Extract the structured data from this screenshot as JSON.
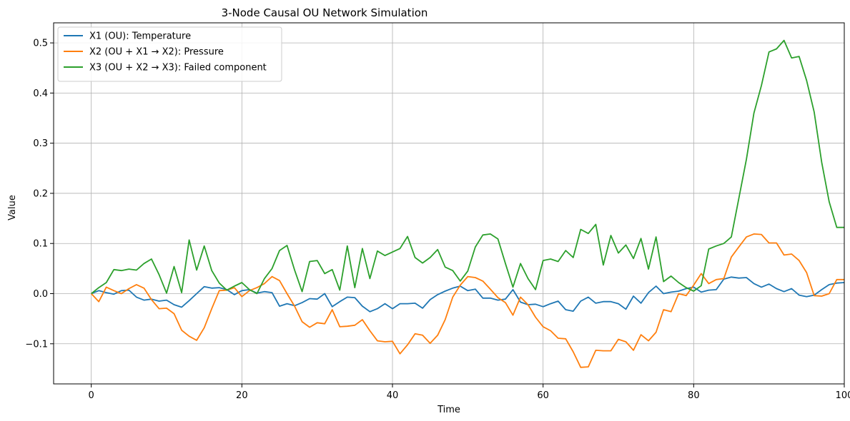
{
  "chart_data": {
    "type": "line",
    "title": "3-Node Causal OU Network Simulation",
    "xlabel": "Time",
    "ylabel": "Value",
    "xlim": [
      -5,
      100
    ],
    "ylim": [
      -0.18,
      0.54
    ],
    "xticks": [
      0,
      20,
      40,
      60,
      80,
      100
    ],
    "yticks": [
      -0.1,
      0.0,
      0.1,
      0.2,
      0.3,
      0.4,
      0.5
    ],
    "ytick_labels": [
      "−0.1",
      "0.0",
      "0.1",
      "0.2",
      "0.3",
      "0.4",
      "0.5"
    ],
    "grid": true,
    "legend_position": "upper-left",
    "x": [
      0,
      1,
      2,
      3,
      4,
      5,
      6,
      7,
      8,
      9,
      10,
      11,
      12,
      13,
      14,
      15,
      16,
      17,
      18,
      19,
      20,
      21,
      22,
      23,
      24,
      25,
      26,
      27,
      28,
      29,
      30,
      31,
      32,
      33,
      34,
      35,
      36,
      37,
      38,
      39,
      40,
      41,
      42,
      43,
      44,
      45,
      46,
      47,
      48,
      49,
      50,
      51,
      52,
      53,
      54,
      55,
      56,
      57,
      58,
      59,
      60,
      61,
      62,
      63,
      64,
      65,
      66,
      67,
      68,
      69,
      70,
      71,
      72,
      73,
      74,
      75,
      76,
      77,
      78,
      79,
      80,
      81,
      82,
      83,
      84,
      85,
      86,
      87,
      88,
      89,
      90,
      91,
      92,
      93,
      94,
      95,
      96,
      97,
      98,
      99,
      100
    ],
    "series": [
      {
        "name": "X1 (OU): Temperature",
        "color": "#1f77b4",
        "values": [
          0.0,
          0.006,
          0.002,
          -0.001,
          0.006,
          0.007,
          -0.007,
          -0.013,
          -0.011,
          -0.015,
          -0.013,
          -0.022,
          -0.027,
          -0.014,
          0.0,
          0.014,
          0.011,
          0.012,
          0.008,
          -0.002,
          0.006,
          0.008,
          0.001,
          0.004,
          0.002,
          -0.025,
          -0.02,
          -0.024,
          -0.018,
          -0.01,
          -0.011,
          0.0,
          -0.026,
          -0.016,
          -0.007,
          -0.008,
          -0.025,
          -0.036,
          -0.03,
          -0.02,
          -0.03,
          -0.02,
          -0.02,
          -0.019,
          -0.029,
          -0.012,
          -0.002,
          0.005,
          0.011,
          0.015,
          0.006,
          0.009,
          -0.009,
          -0.009,
          -0.013,
          -0.011,
          0.008,
          -0.017,
          -0.022,
          -0.021,
          -0.026,
          -0.02,
          -0.015,
          -0.032,
          -0.035,
          -0.015,
          -0.007,
          -0.019,
          -0.016,
          -0.016,
          -0.02,
          -0.031,
          -0.005,
          -0.019,
          0.002,
          0.015,
          0.0,
          0.003,
          0.005,
          0.01,
          0.013,
          0.003,
          0.007,
          0.008,
          0.029,
          0.033,
          0.031,
          0.032,
          0.02,
          0.013,
          0.019,
          0.01,
          0.004,
          0.01,
          -0.003,
          -0.006,
          -0.003,
          0.008,
          0.018,
          0.021,
          0.022
        ]
      },
      {
        "name": "X2 (OU + X1 → X2): Pressure",
        "color": "#ff7f0e",
        "values": [
          0.0,
          -0.016,
          0.013,
          0.006,
          0.0,
          0.01,
          0.018,
          0.011,
          -0.012,
          -0.03,
          -0.029,
          -0.04,
          -0.073,
          -0.085,
          -0.093,
          -0.068,
          -0.03,
          0.006,
          0.007,
          0.012,
          -0.006,
          0.006,
          0.012,
          0.02,
          0.034,
          0.026,
          0.0,
          -0.025,
          -0.056,
          -0.067,
          -0.058,
          -0.06,
          -0.032,
          -0.066,
          -0.065,
          -0.063,
          -0.052,
          -0.074,
          -0.094,
          -0.096,
          -0.095,
          -0.12,
          -0.102,
          -0.08,
          -0.083,
          -0.099,
          -0.083,
          -0.052,
          -0.007,
          0.017,
          0.034,
          0.032,
          0.025,
          0.009,
          -0.008,
          -0.018,
          -0.043,
          -0.007,
          -0.022,
          -0.047,
          -0.066,
          -0.074,
          -0.089,
          -0.09,
          -0.116,
          -0.147,
          -0.146,
          -0.113,
          -0.114,
          -0.114,
          -0.091,
          -0.096,
          -0.113,
          -0.082,
          -0.094,
          -0.077,
          -0.032,
          -0.036,
          0.0,
          -0.004,
          0.017,
          0.04,
          0.02,
          0.028,
          0.03,
          0.073,
          0.093,
          0.113,
          0.119,
          0.118,
          0.101,
          0.101,
          0.077,
          0.079,
          0.066,
          0.042,
          -0.004,
          -0.005,
          0.0,
          0.028,
          0.028
        ]
      },
      {
        "name": "X3 (OU + X2 → X3): Failed component",
        "color": "#2ca02c",
        "values": [
          0.0,
          0.012,
          0.022,
          0.048,
          0.046,
          0.049,
          0.047,
          0.06,
          0.069,
          0.038,
          0.001,
          0.054,
          0.002,
          0.107,
          0.047,
          0.095,
          0.046,
          0.021,
          0.007,
          0.015,
          0.022,
          0.008,
          0.0,
          0.03,
          0.05,
          0.086,
          0.096,
          0.047,
          0.004,
          0.064,
          0.066,
          0.04,
          0.048,
          0.007,
          0.095,
          0.012,
          0.09,
          0.03,
          0.085,
          0.076,
          0.083,
          0.09,
          0.114,
          0.072,
          0.061,
          0.072,
          0.088,
          0.053,
          0.046,
          0.025,
          0.045,
          0.093,
          0.117,
          0.119,
          0.109,
          0.06,
          0.013,
          0.06,
          0.03,
          0.008,
          0.066,
          0.069,
          0.064,
          0.086,
          0.072,
          0.128,
          0.12,
          0.138,
          0.057,
          0.116,
          0.081,
          0.097,
          0.07,
          0.11,
          0.049,
          0.113,
          0.024,
          0.035,
          0.022,
          0.012,
          0.005,
          0.016,
          0.089,
          0.095,
          0.1,
          0.113,
          0.19,
          0.268,
          0.36,
          0.415,
          0.482,
          0.488,
          0.505,
          0.47,
          0.473,
          0.425,
          0.362,
          0.262,
          0.183,
          0.132,
          0.132
        ]
      }
    ]
  }
}
